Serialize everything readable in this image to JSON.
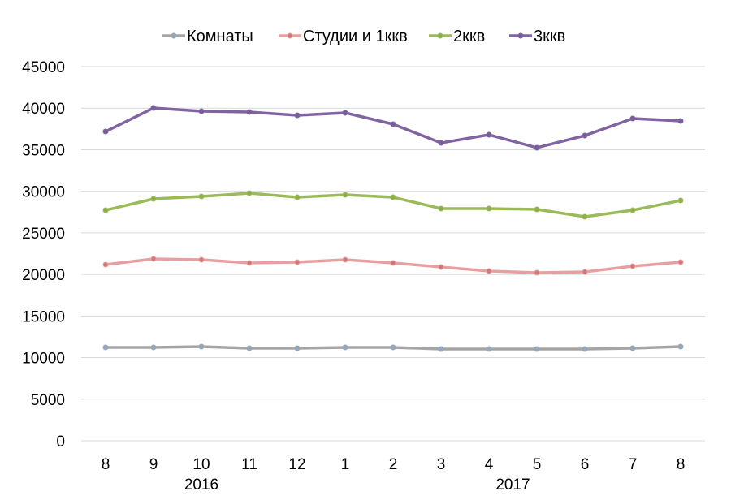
{
  "chart_data": {
    "type": "line",
    "title": "",
    "xlabel": "",
    "ylabel": "",
    "ylim": [
      0,
      45000
    ],
    "yticks": [
      0,
      5000,
      10000,
      15000,
      20000,
      25000,
      30000,
      35000,
      40000,
      45000
    ],
    "grid": true,
    "legend_position": "top",
    "categories": [
      "8",
      "9",
      "10",
      "11",
      "12",
      "1",
      "2",
      "3",
      "4",
      "5",
      "6",
      "7",
      "8"
    ],
    "year_labels": [
      {
        "label": "2016",
        "from": 0,
        "to": 4
      },
      {
        "label": "2017",
        "from": 5,
        "to": 12
      }
    ],
    "series": [
      {
        "name": "Комнаты",
        "color": "#A5A5A5",
        "marker": "#8EA9C8",
        "values": [
          11230,
          11230,
          11320,
          11130,
          11130,
          11230,
          11230,
          11030,
          11030,
          11030,
          11030,
          11130,
          11320
        ]
      },
      {
        "name": "Студии и 1ккв",
        "color": "#E6A0A0",
        "marker": "#D07878",
        "values": [
          21180,
          21870,
          21770,
          21380,
          21480,
          21770,
          21380,
          20890,
          20400,
          20210,
          20300,
          20990,
          21480
        ]
      },
      {
        "name": "2ккв",
        "color": "#9BBB59",
        "marker": "#8AAE48",
        "values": [
          27720,
          29090,
          29380,
          29770,
          29280,
          29580,
          29280,
          27920,
          27920,
          27820,
          26940,
          27720,
          28890
        ]
      },
      {
        "name": "3ккв",
        "color": "#8064A2",
        "marker": "#7A5C9C",
        "values": [
          37190,
          40020,
          39630,
          39530,
          39140,
          39440,
          38070,
          35820,
          36800,
          35240,
          36700,
          38750,
          38460
        ]
      }
    ]
  }
}
